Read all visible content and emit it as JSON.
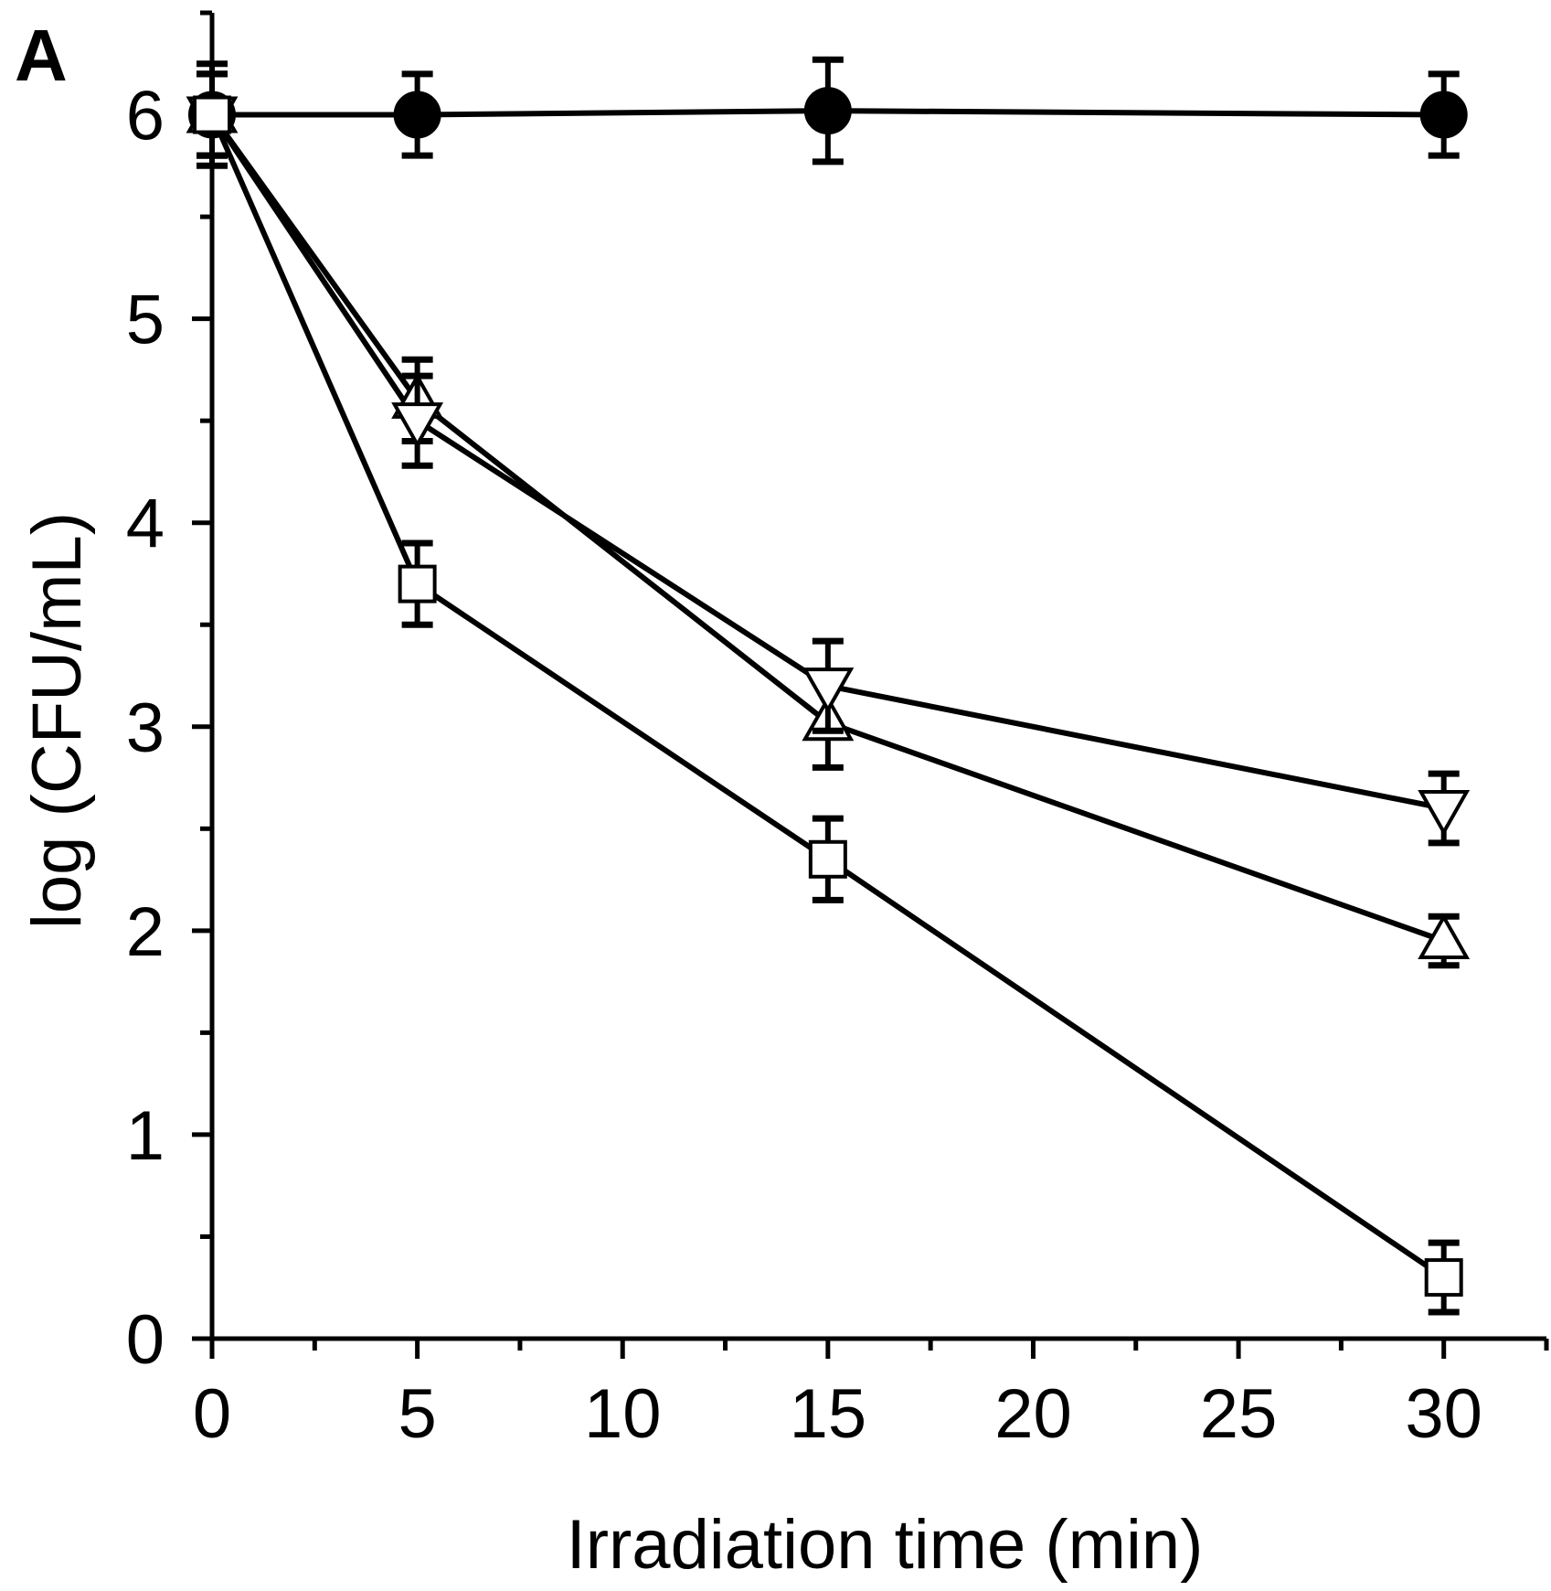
{
  "panel_label": "A",
  "chart_data": {
    "type": "line",
    "title": "",
    "xlabel": "Irradiation time (min)",
    "ylabel": "log (CFU/mL)",
    "xlim": [
      0,
      32.5
    ],
    "ylim": [
      0,
      6.5
    ],
    "xticks": [
      0,
      5,
      10,
      15,
      20,
      25,
      30
    ],
    "yticks": [
      0,
      1,
      2,
      3,
      4,
      5,
      6
    ],
    "x": [
      0,
      5,
      15,
      30
    ],
    "series": [
      {
        "name": "filled circle",
        "marker": "circle-filled",
        "values": [
          6.0,
          6.0,
          6.02,
          6.0
        ],
        "errors": [
          0.25,
          0.2,
          0.25,
          0.2
        ]
      },
      {
        "name": "open triangle up",
        "marker": "triangle-up-open",
        "values": [
          6.0,
          4.6,
          3.02,
          1.95
        ],
        "errors": [
          0.2,
          0.2,
          0.22,
          0.12
        ]
      },
      {
        "name": "open triangle down",
        "marker": "triangle-down-open",
        "values": [
          6.0,
          4.5,
          3.2,
          2.6
        ],
        "errors": [
          0.2,
          0.22,
          0.22,
          0.17
        ]
      },
      {
        "name": "open square",
        "marker": "square-open",
        "values": [
          6.0,
          3.7,
          2.35,
          0.3
        ],
        "errors": [
          0.2,
          0.2,
          0.2,
          0.17
        ]
      }
    ],
    "grid": false,
    "legend": "none"
  }
}
